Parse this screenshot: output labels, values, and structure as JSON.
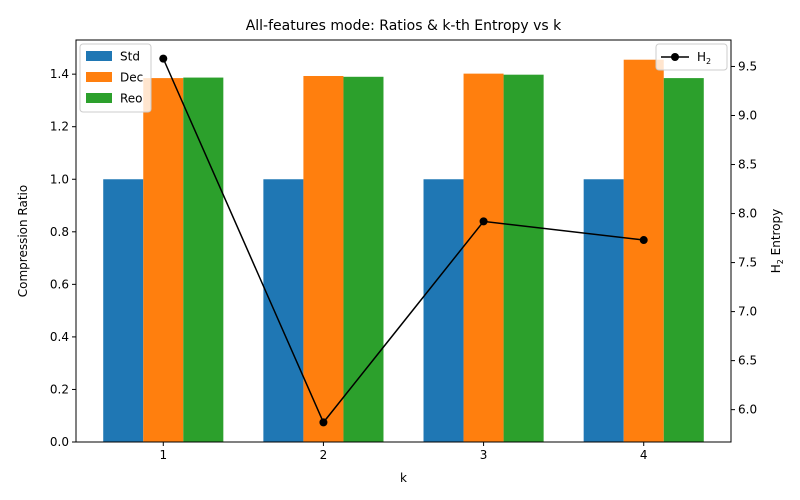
{
  "chart_data": {
    "type": "bar",
    "title": "All-features mode: Ratios & k-th Entropy vs k",
    "xlabel": "k",
    "ylabel_left": "Compression Ratio",
    "ylabel_right_base": "H",
    "ylabel_right_sub": "2",
    "ylabel_right_rest": " Entropy",
    "categories": [
      "1",
      "2",
      "3",
      "4"
    ],
    "ylim_left": [
      0,
      1.53
    ],
    "yticks_left": [
      "0.0",
      "0.2",
      "0.4",
      "0.6",
      "0.8",
      "1.0",
      "1.2",
      "1.4"
    ],
    "yticks_left_values": [
      0,
      0.2,
      0.4,
      0.6,
      0.8,
      1.0,
      1.2,
      1.4
    ],
    "ylim_right": [
      5.67,
      9.77
    ],
    "yticks_right": [
      "6.0",
      "6.5",
      "7.0",
      "7.5",
      "8.0",
      "8.5",
      "9.0",
      "9.5"
    ],
    "yticks_right_values": [
      6.0,
      6.5,
      7.0,
      7.5,
      8.0,
      8.5,
      9.0,
      9.5
    ],
    "series": [
      {
        "name": "Std",
        "color": "#1f77b4",
        "values": [
          1.0,
          1.0,
          1.0,
          1.0
        ]
      },
      {
        "name": "Dec",
        "color": "#ff7f0e",
        "values": [
          1.385,
          1.393,
          1.402,
          1.455
        ]
      },
      {
        "name": "Reo",
        "color": "#2ca02c",
        "values": [
          1.387,
          1.39,
          1.398,
          1.385
        ]
      }
    ],
    "line_series": {
      "name_base": "H",
      "name_sub": "2",
      "color": "#000000",
      "values": [
        9.58,
        5.87,
        7.92,
        7.73
      ]
    },
    "legend_left_placement": "upper-left",
    "legend_right_placement": "upper-right",
    "grid": false
  }
}
